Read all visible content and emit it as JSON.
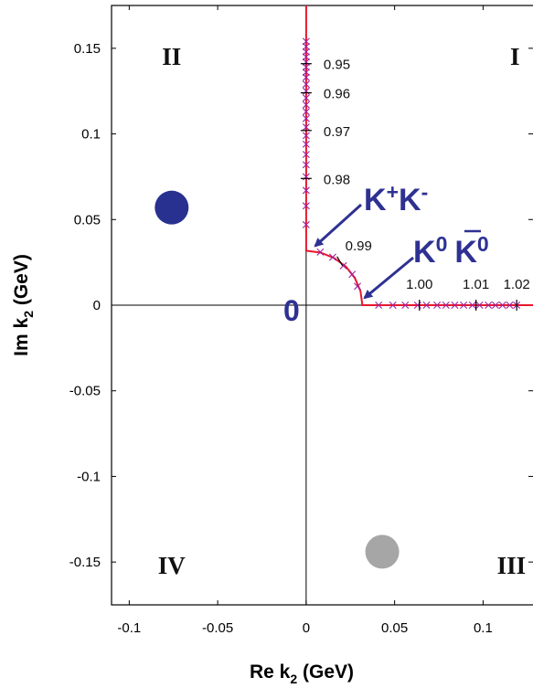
{
  "chart_data": {
    "type": "scatter",
    "xlabel": "Re k",
    "xlabel_sub": "2",
    "xlabel_unit": "(GeV)",
    "ylabel": "Im k",
    "ylabel_sub": "2",
    "ylabel_unit": "(GeV)",
    "xlim": [
      -0.11,
      0.137
    ],
    "ylim": [
      -0.175,
      0.175
    ],
    "x_ticks": [
      -0.1,
      -0.05,
      0,
      0.05,
      0.1
    ],
    "x_tick_labels": [
      "-0.1",
      "-0.05",
      "0",
      "0.05",
      "0.1"
    ],
    "y_ticks": [
      0.15,
      0.1,
      0.05,
      0,
      -0.05,
      -0.1,
      -0.15
    ],
    "y_tick_labels": [
      "0.15",
      "0.1",
      "0.05",
      "0",
      "-0.05",
      "-0.1",
      "-0.15"
    ],
    "quadrant_labels": [
      {
        "text": "I",
        "x": 0.118,
        "y": 0.145
      },
      {
        "text": "II",
        "x": -0.076,
        "y": 0.145
      },
      {
        "text": "III",
        "x": 0.116,
        "y": -0.152
      },
      {
        "text": "IV",
        "x": -0.076,
        "y": -0.152
      }
    ],
    "origin_label": "0",
    "thresholds": [
      {
        "main": "K",
        "sup1": "+",
        "mid": "K",
        "sup2": "-",
        "x": 0.0,
        "y": 0.0335
      },
      {
        "main": "K",
        "sup1": "0",
        "mid": "K",
        "sup2": "0",
        "bar_on_second": true,
        "x": 0.031,
        "y": 0.0
      }
    ],
    "series": [
      {
        "name": "",
        "color": "#e8172c",
        "marker_color": "#9e1f9e",
        "path": [
          [
            0.0,
            0.175
          ],
          [
            0.0,
            0.0318
          ],
          [
            0.0082,
            0.0307
          ],
          [
            0.0159,
            0.0275
          ],
          [
            0.0225,
            0.0225
          ],
          [
            0.0275,
            0.0159
          ],
          [
            0.0307,
            0.0082
          ],
          [
            0.0318,
            0.0
          ],
          [
            0.137,
            0.0
          ]
        ],
        "points": [
          [
            0.0,
            0.154
          ],
          [
            0.0,
            0.151
          ],
          [
            0.0,
            0.148
          ],
          [
            0.0,
            0.145
          ],
          [
            0.0,
            0.142
          ],
          [
            0.0,
            0.139
          ],
          [
            0.0,
            0.136
          ],
          [
            0.0,
            0.133
          ],
          [
            0.0,
            0.129
          ],
          [
            0.0,
            0.125
          ],
          [
            0.0,
            0.121
          ],
          [
            0.0,
            0.117
          ],
          [
            0.0,
            0.113
          ],
          [
            0.0,
            0.109
          ],
          [
            0.0,
            0.104
          ],
          [
            0.0,
            0.099
          ],
          [
            0.0,
            0.094
          ],
          [
            0.0,
            0.088
          ],
          [
            0.0,
            0.082
          ],
          [
            0.0,
            0.075
          ],
          [
            0.0,
            0.067
          ],
          [
            0.0,
            0.058
          ],
          [
            0.0,
            0.047
          ],
          [
            0.008,
            0.031
          ],
          [
            0.015,
            0.028
          ],
          [
            0.021,
            0.023
          ],
          [
            0.026,
            0.018
          ],
          [
            0.029,
            0.011
          ],
          [
            0.041,
            0.0
          ],
          [
            0.049,
            0.0
          ],
          [
            0.056,
            0.0
          ],
          [
            0.063,
            0.0
          ],
          [
            0.068,
            0.0
          ],
          [
            0.074,
            0.0
          ],
          [
            0.079,
            0.0
          ],
          [
            0.084,
            0.0
          ],
          [
            0.089,
            0.0
          ],
          [
            0.094,
            0.0
          ],
          [
            0.098,
            0.0
          ],
          [
            0.103,
            0.0
          ],
          [
            0.107,
            0.0
          ],
          [
            0.111,
            0.0
          ],
          [
            0.115,
            0.0
          ],
          [
            0.119,
            0.0
          ]
        ]
      }
    ],
    "energy_labels": [
      {
        "text": "0.95",
        "x": 0.0,
        "y": 0.141
      },
      {
        "text": "0.96",
        "x": 0.0,
        "y": 0.124
      },
      {
        "text": "0.97",
        "x": 0.0,
        "y": 0.102
      },
      {
        "text": "0.98",
        "x": 0.0,
        "y": 0.074
      },
      {
        "text": "0.99",
        "x": 0.019,
        "y": 0.0257
      },
      {
        "text": "1.00",
        "x": 0.064,
        "y": 0.0
      },
      {
        "text": "1.01",
        "x": 0.096,
        "y": 0.0
      },
      {
        "text": "1.02",
        "x": 0.119,
        "y": 0.0
      }
    ],
    "circles": [
      {
        "x": -0.076,
        "y": 0.057,
        "color": "#28318f"
      },
      {
        "x": 0.043,
        "y": -0.144,
        "color": "#a6a6a6"
      }
    ]
  }
}
